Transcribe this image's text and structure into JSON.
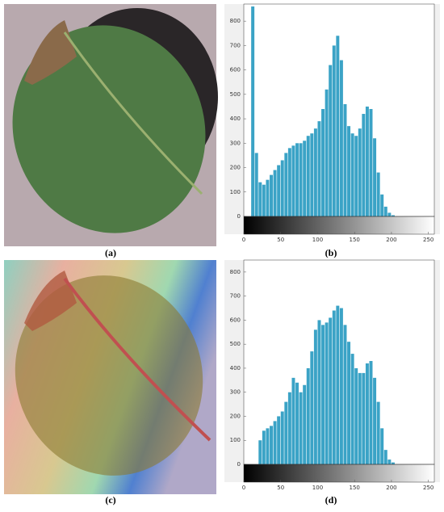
{
  "captions": [
    "(a)",
    "(b)",
    "(c)",
    "(d)"
  ],
  "chart_data": [
    {
      "type": "histogram",
      "color": "#3ba3c6",
      "bins": [
        0,
        5,
        10,
        15,
        20,
        25,
        30,
        35,
        40,
        45,
        50,
        55,
        60,
        65,
        70,
        75,
        80,
        85,
        90,
        95,
        100,
        105,
        110,
        115,
        120,
        125,
        130,
        135,
        140,
        145,
        150,
        155,
        160,
        165,
        170,
        175,
        180,
        185,
        190,
        195,
        200,
        205,
        210,
        215,
        220,
        225,
        230,
        235,
        240,
        245,
        250,
        255
      ],
      "values": [
        0,
        0,
        860,
        260,
        140,
        130,
        150,
        170,
        190,
        210,
        230,
        260,
        280,
        290,
        300,
        300,
        310,
        330,
        340,
        360,
        390,
        440,
        520,
        620,
        700,
        740,
        640,
        460,
        370,
        340,
        330,
        360,
        420,
        450,
        440,
        320,
        180,
        90,
        40,
        15,
        5,
        0,
        0,
        0,
        0,
        0,
        0,
        0,
        0,
        0,
        0
      ],
      "xlim": [
        0,
        258
      ],
      "xticks": [
        0,
        50,
        100,
        150,
        200,
        250
      ],
      "ylim": [
        0,
        870
      ],
      "yticks": [
        0,
        100,
        200,
        300,
        400,
        500,
        600,
        700,
        800
      ]
    },
    {
      "type": "histogram",
      "color": "#3ba3c6",
      "bins": [
        0,
        5,
        10,
        15,
        20,
        25,
        30,
        35,
        40,
        45,
        50,
        55,
        60,
        65,
        70,
        75,
        80,
        85,
        90,
        95,
        100,
        105,
        110,
        115,
        120,
        125,
        130,
        135,
        140,
        145,
        150,
        155,
        160,
        165,
        170,
        175,
        180,
        185,
        190,
        195,
        200,
        205,
        210,
        215,
        220,
        225,
        230,
        235,
        240,
        245,
        250,
        255
      ],
      "values": [
        0,
        0,
        0,
        0,
        100,
        140,
        150,
        160,
        180,
        200,
        220,
        260,
        300,
        360,
        340,
        300,
        330,
        400,
        470,
        560,
        600,
        580,
        590,
        610,
        640,
        660,
        650,
        580,
        510,
        460,
        400,
        380,
        380,
        420,
        430,
        360,
        260,
        150,
        60,
        20,
        8,
        0,
        0,
        0,
        0,
        0,
        0,
        0,
        0,
        0,
        0
      ],
      "xlim": [
        0,
        258
      ],
      "xticks": [
        0,
        50,
        100,
        150,
        200,
        250
      ],
      "ylim": [
        0,
        850
      ],
      "yticks": [
        0,
        100,
        200,
        300,
        400,
        500,
        600,
        700,
        800
      ]
    }
  ]
}
